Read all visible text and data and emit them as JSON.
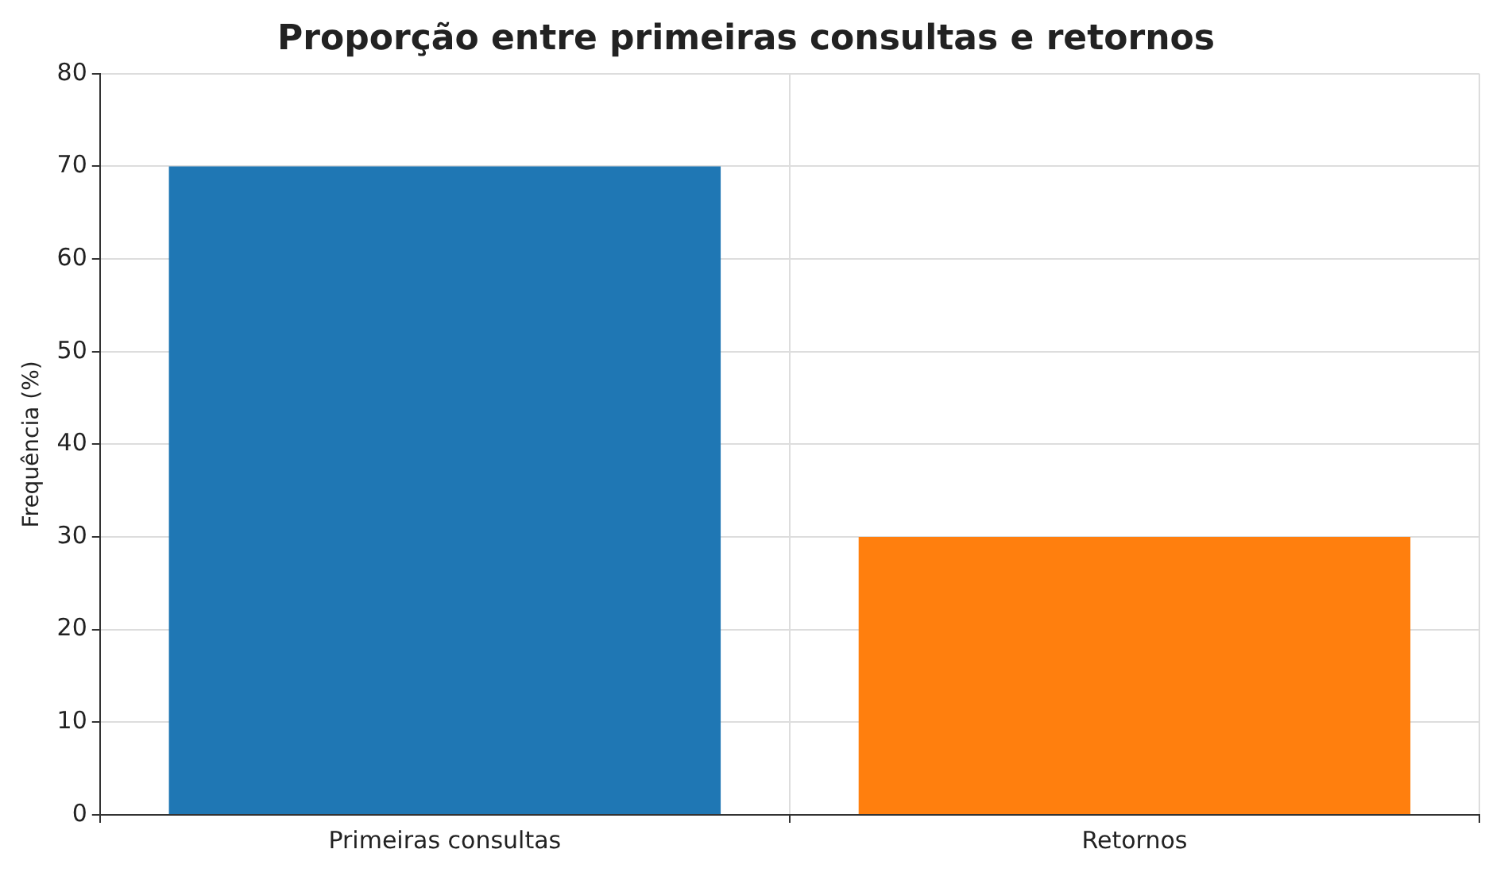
{
  "chart_data": {
    "type": "bar",
    "title": "Proporção entre primeiras consultas e retornos",
    "ylabel": "Frequência (%)",
    "categories": [
      "Primeiras consultas",
      "Retornos"
    ],
    "values": [
      70,
      30
    ],
    "colors": [
      "#1f77b4",
      "#ff7f0e"
    ],
    "ylim": [
      0,
      80
    ],
    "yticks": [
      0,
      10,
      20,
      30,
      40,
      50,
      60,
      70,
      80
    ],
    "grid": true,
    "legend": false
  }
}
